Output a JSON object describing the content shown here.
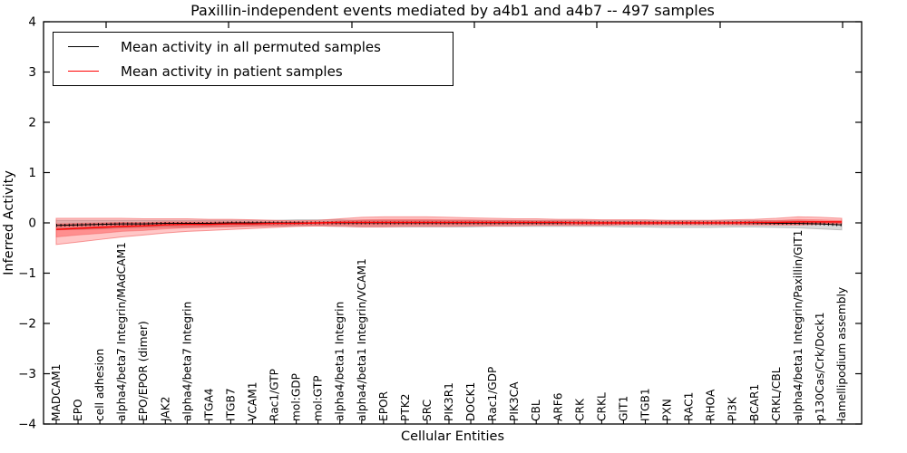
{
  "figure": {
    "background_color": "#ffffff"
  },
  "chart_data": {
    "type": "line",
    "title": "Paxillin-independent events mediated by a4b1 and a4b7 -- 497 samples",
    "xlabel": "Cellular Entities",
    "ylabel": "Inferred Activity",
    "ylim": [
      -4,
      4
    ],
    "yticks": [
      4,
      3,
      2,
      1,
      0,
      -1,
      -2,
      -3,
      -4
    ],
    "grid": false,
    "legend_position": "upper left",
    "categories": [
      "MADCAM1",
      "EPO",
      "cell adhesion",
      "alpha4/beta7 Integrin/MAdCAM1",
      "EPO/EPOR (dimer)",
      "JAK2",
      "alpha4/beta7 Integrin",
      "ITGA4",
      "ITGB7",
      "VCAM1",
      "Rac1/GTP",
      "mol:GDP",
      "mol:GTP",
      "alpha4/beta1 Integrin",
      "alpha4/beta1 Integrin/VCAM1",
      "EPOR",
      "PTK2",
      "SRC",
      "PIK3R1",
      "DOCK1",
      "Rac1/GDP",
      "PIK3CA",
      "CBL",
      "ARF6",
      "CRK",
      "CRKL",
      "GIT1",
      "ITGB1",
      "PXN",
      "RAC1",
      "RHOA",
      "PI3K",
      "BCAR1",
      "CRKL/CBL",
      "alpha4/beta1 Integrin/Paxillin/GIT1",
      "p130Cas/Crk/Dock1",
      "lamellipodium assembly"
    ],
    "series": [
      {
        "name": "Mean activity in all permuted samples",
        "color": "#000000",
        "marker": "tick",
        "values": [
          -0.05,
          -0.04,
          -0.03,
          -0.02,
          -0.02,
          -0.01,
          -0.01,
          -0.01,
          0,
          0,
          0,
          0,
          0,
          0,
          0,
          0,
          0,
          0,
          0,
          0,
          0,
          0,
          0,
          0,
          0,
          0,
          0,
          0,
          0,
          0,
          0,
          0,
          0,
          -0.01,
          -0.01,
          -0.02,
          -0.04
        ],
        "bands": [
          {
            "upper": [
              0.05,
              0.05,
              0.05,
              0.05,
              0.05,
              0.05,
              0.05,
              0.05,
              0.05,
              0.05,
              0.05,
              0.06,
              0.06,
              0.06,
              0.05,
              0.05,
              0.05,
              0.05,
              0.05,
              0.05,
              0.05,
              0.05,
              0.05,
              0.05,
              0.05,
              0.05,
              0.05,
              0.05,
              0.05,
              0.05,
              0.05,
              0.05,
              0.05,
              0.04,
              0.04,
              0.03,
              0.02
            ],
            "lower": [
              -0.14,
              -0.13,
              -0.12,
              -0.1,
              -0.09,
              -0.08,
              -0.08,
              -0.07,
              -0.07,
              -0.06,
              -0.06,
              -0.06,
              -0.06,
              -0.07,
              -0.08,
              -0.08,
              -0.08,
              -0.08,
              -0.08,
              -0.08,
              -0.07,
              -0.07,
              -0.07,
              -0.07,
              -0.07,
              -0.07,
              -0.08,
              -0.08,
              -0.09,
              -0.09,
              -0.09,
              -0.08,
              -0.08,
              -0.09,
              -0.1,
              -0.12,
              -0.14
            ],
            "color": "#a8a8a8",
            "opacity": 0.42,
            "edge_color": "#9a9a9a",
            "edge_opacity": 0.55
          }
        ]
      },
      {
        "name": "Mean activity in patient samples",
        "color": "#ff0000",
        "marker": "none",
        "values": [
          -0.13,
          -0.11,
          -0.09,
          -0.07,
          -0.06,
          -0.04,
          -0.03,
          -0.03,
          -0.02,
          -0.02,
          -0.01,
          -0.01,
          0,
          0.01,
          0.01,
          0.01,
          0.01,
          0.01,
          0.01,
          0.01,
          0.01,
          0.01,
          0.01,
          0.01,
          0,
          0,
          0,
          0,
          0,
          0,
          0,
          0,
          0.01,
          0.01,
          0.02,
          0.02,
          0.02
        ],
        "bands": [
          {
            "upper": [
              0.09,
              0.09,
              0.09,
              0.09,
              0.08,
              0.08,
              0.08,
              0.07,
              0.07,
              0.06,
              0.05,
              0.04,
              0.05,
              0.08,
              0.11,
              0.12,
              0.12,
              0.12,
              0.11,
              0.1,
              0.09,
              0.08,
              0.08,
              0.07,
              0.07,
              0.06,
              0.06,
              0.06,
              0.05,
              0.05,
              0.05,
              0.06,
              0.07,
              0.09,
              0.12,
              0.11,
              0.09
            ],
            "lower": [
              -0.43,
              -0.38,
              -0.33,
              -0.28,
              -0.24,
              -0.2,
              -0.17,
              -0.15,
              -0.13,
              -0.11,
              -0.09,
              -0.07,
              -0.06,
              -0.07,
              -0.08,
              -0.08,
              -0.07,
              -0.07,
              -0.07,
              -0.06,
              -0.06,
              -0.06,
              -0.05,
              -0.05,
              -0.05,
              -0.05,
              -0.04,
              -0.04,
              -0.04,
              -0.04,
              -0.04,
              -0.04,
              -0.04,
              -0.04,
              -0.04,
              -0.03,
              -0.02
            ],
            "color": "#ff0000",
            "opacity": 0.22,
            "edge_color": "#f26464",
            "edge_opacity": 0.65
          },
          {
            "upper": [
              -0.02,
              -0.01,
              0,
              0.01,
              0.01,
              0.02,
              0.02,
              0.02,
              0.02,
              0.02,
              0.02,
              0.02,
              0.02,
              0.04,
              0.06,
              0.07,
              0.07,
              0.07,
              0.06,
              0.06,
              0.05,
              0.05,
              0.04,
              0.04,
              0.04,
              0.03,
              0.03,
              0.03,
              0.03,
              0.03,
              0.03,
              0.03,
              0.04,
              0.05,
              0.07,
              0.06,
              0.05
            ],
            "lower": [
              -0.28,
              -0.24,
              -0.21,
              -0.17,
              -0.15,
              -0.12,
              -0.1,
              -0.09,
              -0.08,
              -0.07,
              -0.06,
              -0.04,
              -0.04,
              -0.04,
              -0.05,
              -0.05,
              -0.04,
              -0.04,
              -0.04,
              -0.04,
              -0.04,
              -0.03,
              -0.03,
              -0.03,
              -0.03,
              -0.03,
              -0.03,
              -0.03,
              -0.02,
              -0.02,
              -0.02,
              -0.02,
              -0.03,
              -0.03,
              -0.03,
              -0.02,
              -0.01
            ],
            "color": "#ff0000",
            "opacity": 0.28,
            "edge_color": "#ee5555",
            "edge_opacity": 0.4
          }
        ]
      }
    ]
  },
  "legend": {
    "entries": [
      {
        "label": "Mean activity in all permuted samples",
        "color": "#000000"
      },
      {
        "label": "Mean activity in patient samples",
        "color": "#ff0000"
      }
    ]
  },
  "axis": {
    "frame_color": "#000000"
  }
}
